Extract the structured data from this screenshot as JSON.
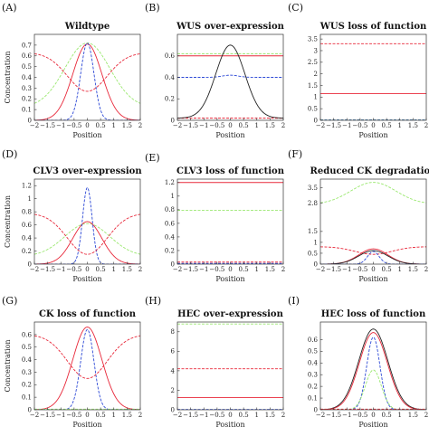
{
  "chart_data": [
    {
      "letter": "(A)",
      "title": "Wildtype",
      "type": "line",
      "xlabel": "Position",
      "ylabel": "Concentration",
      "xlim": [
        -2,
        2
      ],
      "ylim": [
        0,
        0.8
      ],
      "xticks": [
        -2,
        -1.5,
        -1,
        -0.5,
        0,
        0.5,
        1,
        1.5,
        2
      ],
      "xticklabels": [
        "−2",
        "−1.5",
        "−1",
        "−0.5",
        "0",
        "0.5",
        "1",
        "1.5",
        "2"
      ],
      "yticks": [
        0,
        0.1,
        0.2,
        0.3,
        0.4,
        0.5,
        0.6,
        0.7
      ],
      "yticklabels": [
        "0",
        "0.1",
        "0.2",
        "0.3",
        "0.4",
        "0.5",
        "0.6",
        "0.7"
      ],
      "series": [
        {
          "color": "#9be870",
          "dash": "3,1.5",
          "shape": "gauss",
          "params": {
            "a": 0.6,
            "s": 0.85,
            "c": 0.12
          }
        },
        {
          "color": "#e8283a",
          "dash": "",
          "shape": "gauss",
          "params": {
            "a": 0.71,
            "s": 0.55,
            "c": 0.0
          }
        },
        {
          "color": "#2d49d6",
          "dash": "3,1.5",
          "shape": "gauss",
          "params": {
            "a": 0.72,
            "s": 0.25,
            "c": 0.0
          }
        },
        {
          "color": "#e8283a",
          "dash": "3,1.5",
          "shape": "invgauss",
          "params": {
            "top": 0.63,
            "bottom": 0.27,
            "s": 0.75
          }
        }
      ]
    },
    {
      "letter": "(B)",
      "title": "WUS over-expression",
      "type": "line",
      "xlabel": "Position",
      "ylabel": "",
      "xlim": [
        -2,
        2
      ],
      "ylim": [
        0,
        0.8
      ],
      "xticks": [
        -2,
        -1.5,
        -1,
        -0.5,
        0,
        0.5,
        1,
        1.5,
        2
      ],
      "xticklabels": [
        "−2",
        "−1.5",
        "−1",
        "−0.5",
        "0",
        "0.5",
        "1",
        "1.5",
        "2"
      ],
      "yticks": [
        0,
        0.2,
        0.4,
        0.6
      ],
      "yticklabels": [
        "0",
        "0.2",
        "0.4",
        "0.6"
      ],
      "series": [
        {
          "color": "#9be870",
          "dash": "3,1.5",
          "shape": "const",
          "params": {
            "v": 0.62
          }
        },
        {
          "color": "#e8283a",
          "dash": "",
          "shape": "const",
          "params": {
            "v": 0.6
          }
        },
        {
          "color": "#2d49d6",
          "dash": "3,1.5",
          "shape": "bumpconst",
          "params": {
            "v": 0.4,
            "a": 0.02,
            "s": 0.3
          }
        },
        {
          "color": "#e8283a",
          "dash": "3,1.5",
          "shape": "const",
          "params": {
            "v": 0.02
          }
        },
        {
          "color": "#222222",
          "dash": "",
          "shape": "gauss",
          "params": {
            "a": 0.68,
            "s": 0.55,
            "c": 0.02
          }
        }
      ]
    },
    {
      "letter": "(C)",
      "title": "WUS loss of function",
      "type": "line",
      "xlabel": "Position",
      "ylabel": "",
      "xlim": [
        -2,
        2
      ],
      "ylim": [
        0,
        3.7
      ],
      "xticks": [
        -2,
        -1.5,
        -1,
        -0.5,
        0,
        0.5,
        1,
        1.5,
        2
      ],
      "xticklabels": [
        "−2",
        "−1.5",
        "−1",
        "−0.5",
        "0",
        "0.5",
        "1",
        "1.5",
        "2"
      ],
      "yticks": [
        0,
        0.5,
        1,
        1.5,
        2,
        2.5,
        3,
        3.5
      ],
      "yticklabels": [
        "0",
        "0.5",
        "1",
        "1.5",
        "2",
        "2.5",
        "3",
        "3.5"
      ],
      "series": [
        {
          "color": "#e8283a",
          "dash": "3,1.5",
          "shape": "const",
          "params": {
            "v": 3.3
          }
        },
        {
          "color": "#e8283a",
          "dash": "",
          "shape": "const",
          "params": {
            "v": 1.15
          }
        },
        {
          "color": "#9be870",
          "dash": "3,1.5",
          "shape": "const",
          "params": {
            "v": 0.02
          }
        },
        {
          "color": "#2d49d6",
          "dash": "3,1.5",
          "shape": "const",
          "params": {
            "v": 0.01
          }
        }
      ]
    },
    {
      "letter": "(D)",
      "title": "CLV3 over-expression",
      "type": "line",
      "xlabel": "Position",
      "ylabel": "Concentration",
      "xlim": [
        -2,
        2
      ],
      "ylim": [
        0,
        1.3
      ],
      "xticks": [
        -2,
        -1.5,
        -1,
        -0.5,
        0,
        0.5,
        1,
        1.5,
        2
      ],
      "xticklabels": [
        "−2",
        "−1.5",
        "−1",
        "−0.5",
        "0",
        "0.5",
        "1",
        "1.5",
        "2"
      ],
      "yticks": [
        0,
        0.2,
        0.4,
        0.6,
        0.8,
        1,
        1.2
      ],
      "yticklabels": [
        "0",
        "0.2",
        "0.4",
        "0.6",
        "0.8",
        "1",
        "1.2"
      ],
      "series": [
        {
          "color": "#9be870",
          "dash": "3,1.5",
          "shape": "gauss",
          "params": {
            "a": 0.5,
            "s": 0.85,
            "c": 0.12
          }
        },
        {
          "color": "#e8283a",
          "dash": "",
          "shape": "gauss",
          "params": {
            "a": 0.65,
            "s": 0.55,
            "c": 0.0
          }
        },
        {
          "color": "#2d49d6",
          "dash": "3,1.5",
          "shape": "gauss",
          "params": {
            "a": 1.17,
            "s": 0.18,
            "c": 0.0
          }
        },
        {
          "color": "#e8283a",
          "dash": "3,1.5",
          "shape": "invgauss",
          "params": {
            "top": 0.78,
            "bottom": 0.15,
            "s": 0.75
          }
        }
      ]
    },
    {
      "letter": "(E)",
      "title": "CLV3 loss of function",
      "type": "line",
      "xlabel": "Position",
      "ylabel": "",
      "xlim": [
        -2,
        2
      ],
      "ylim": [
        0,
        1.25
      ],
      "xticks": [
        -2,
        -1.5,
        -1,
        -0.5,
        0,
        0.5,
        1,
        1.5,
        2
      ],
      "xticklabels": [
        "−2",
        "−1.5",
        "−1",
        "−0.5",
        "0",
        "0.5",
        "1",
        "1.5",
        "2"
      ],
      "yticks": [
        0,
        0.2,
        0.4,
        0.6,
        0.8,
        1,
        1.2
      ],
      "yticklabels": [
        "0",
        "0.2",
        "0.4",
        "0.6",
        "0.8",
        "1",
        "1.2"
      ],
      "series": [
        {
          "color": "#e8283a",
          "dash": "",
          "shape": "const",
          "params": {
            "v": 1.2
          }
        },
        {
          "color": "#9be870",
          "dash": "3,1.5",
          "shape": "const",
          "params": {
            "v": 0.79
          }
        },
        {
          "color": "#e8283a",
          "dash": "3,1.5",
          "shape": "const",
          "params": {
            "v": 0.03
          }
        },
        {
          "color": "#2d49d6",
          "dash": "3,1.5",
          "shape": "const",
          "params": {
            "v": 0.01
          }
        }
      ]
    },
    {
      "letter": "(F)",
      "title": "Reduced CK degradation",
      "type": "line",
      "xlabel": "Position",
      "ylabel": "",
      "xlim": [
        -2,
        2
      ],
      "ylim": [
        0,
        3.9
      ],
      "xticks": [
        -2,
        -1.5,
        -1,
        -0.5,
        0,
        0.5,
        1,
        1.5,
        2
      ],
      "xticklabels": [
        "−2",
        "−1.5",
        "−1",
        "−0.5",
        "0",
        "0.5",
        "1",
        "1.5",
        "2"
      ],
      "yticks": [
        0,
        0.5,
        1,
        1.5,
        2.8,
        3.5
      ],
      "yticklabels": [
        "0",
        "0.5",
        "1",
        "1.5",
        "2.8",
        "3.5"
      ],
      "series": [
        {
          "color": "#9be870",
          "dash": "3,1.5",
          "shape": "gauss",
          "params": {
            "a": 1.0,
            "s": 0.85,
            "c": 2.75
          }
        },
        {
          "color": "#e8283a",
          "dash": "3,1.5",
          "shape": "invgauss",
          "params": {
            "top": 0.8,
            "bottom": 0.45,
            "s": 0.7
          }
        },
        {
          "color": "#e8283a",
          "dash": "",
          "shape": "gauss",
          "params": {
            "a": 0.7,
            "s": 0.55,
            "c": 0.0
          }
        },
        {
          "color": "#222222",
          "dash": "",
          "shape": "gauss",
          "params": {
            "a": 0.62,
            "s": 0.55,
            "c": 0.0
          }
        },
        {
          "color": "#2d49d6",
          "dash": "3,1.5",
          "shape": "gauss",
          "params": {
            "a": 0.58,
            "s": 0.22,
            "c": 0.0
          }
        }
      ]
    },
    {
      "letter": "(G)",
      "title": "CK loss of function",
      "type": "line",
      "xlabel": "Position",
      "ylabel": "Concentration",
      "xlim": [
        -2,
        2
      ],
      "ylim": [
        0,
        0.7
      ],
      "xticks": [
        -2,
        -1.5,
        -1,
        -0.5,
        0,
        0.5,
        1,
        1.5,
        2
      ],
      "xticklabels": [
        "−2",
        "−1.5",
        "−1",
        "−0.5",
        "0",
        "0.5",
        "1",
        "1.5",
        "2"
      ],
      "yticks": [
        0,
        0.1,
        0.2,
        0.3,
        0.4,
        0.5,
        0.6
      ],
      "yticklabels": [
        "0",
        "0.1",
        "0.2",
        "0.3",
        "0.4",
        "0.5",
        "0.6"
      ],
      "series": [
        {
          "color": "#e8283a",
          "dash": "",
          "shape": "gauss",
          "params": {
            "a": 0.66,
            "s": 0.55,
            "c": 0.0
          }
        },
        {
          "color": "#2d49d6",
          "dash": "3,1.5",
          "shape": "gauss",
          "params": {
            "a": 0.64,
            "s": 0.25,
            "c": 0.0
          }
        },
        {
          "color": "#e8283a",
          "dash": "3,1.5",
          "shape": "invgauss",
          "params": {
            "top": 0.6,
            "bottom": 0.25,
            "s": 0.75
          }
        },
        {
          "color": "#9be870",
          "dash": "3,1.5",
          "shape": "const",
          "params": {
            "v": 0.005
          }
        }
      ]
    },
    {
      "letter": "(H)",
      "title": "HEC over-expression",
      "type": "line",
      "xlabel": "Position",
      "ylabel": "",
      "xlim": [
        -2,
        2
      ],
      "ylim": [
        0,
        9
      ],
      "xticks": [
        -2,
        -1.5,
        -1,
        -0.5,
        0,
        0.5,
        1,
        1.5,
        2
      ],
      "xticklabels": [
        "−2",
        "−1.5",
        "−1",
        "−0.5",
        "0",
        "0.5",
        "1",
        "1.5",
        "2"
      ],
      "yticks": [
        0,
        2,
        4,
        6,
        8
      ],
      "yticklabels": [
        "0",
        "2",
        "4",
        "6",
        "8"
      ],
      "series": [
        {
          "color": "#9be870",
          "dash": "3,1.5",
          "shape": "const",
          "params": {
            "v": 8.8
          }
        },
        {
          "color": "#e8283a",
          "dash": "3,1.5",
          "shape": "const",
          "params": {
            "v": 4.2
          }
        },
        {
          "color": "#e8283a",
          "dash": "",
          "shape": "const",
          "params": {
            "v": 1.25
          }
        },
        {
          "color": "#2d49d6",
          "dash": "3,1.5",
          "shape": "const",
          "params": {
            "v": 0.03
          }
        }
      ]
    },
    {
      "letter": "(I)",
      "title": "HEC loss of function",
      "type": "line",
      "xlabel": "Position",
      "ylabel": "",
      "xlim": [
        -2,
        2
      ],
      "ylim": [
        0,
        0.75
      ],
      "xticks": [
        -2,
        -1.5,
        -1,
        -0.5,
        0,
        0.5,
        1,
        1.5,
        2
      ],
      "xticklabels": [
        "−2",
        "−1.5",
        "−1",
        "−0.5",
        "0",
        "0.5",
        "1",
        "1.5",
        "2"
      ],
      "yticks": [
        0,
        0.1,
        0.2,
        0.3,
        0.4,
        0.5,
        0.6
      ],
      "yticklabels": [
        "0",
        "0.1",
        "0.2",
        "0.3",
        "0.4",
        "0.5",
        "0.6"
      ],
      "series": [
        {
          "color": "#222222",
          "dash": "",
          "shape": "gauss",
          "params": {
            "a": 0.69,
            "s": 0.55,
            "c": 0.0
          }
        },
        {
          "color": "#e8283a",
          "dash": "",
          "shape": "gauss",
          "params": {
            "a": 0.66,
            "s": 0.53,
            "c": 0.0
          }
        },
        {
          "color": "#2d49d6",
          "dash": "3,1.5",
          "shape": "gauss",
          "params": {
            "a": 0.62,
            "s": 0.25,
            "c": 0.0
          }
        },
        {
          "color": "#9be870",
          "dash": "3,1.5",
          "shape": "gauss",
          "params": {
            "a": 0.34,
            "s": 0.3,
            "c": 0.0
          }
        },
        {
          "color": "#e8283a",
          "dash": "3,1.5",
          "shape": "const",
          "params": {
            "v": 0.005
          }
        }
      ]
    }
  ]
}
